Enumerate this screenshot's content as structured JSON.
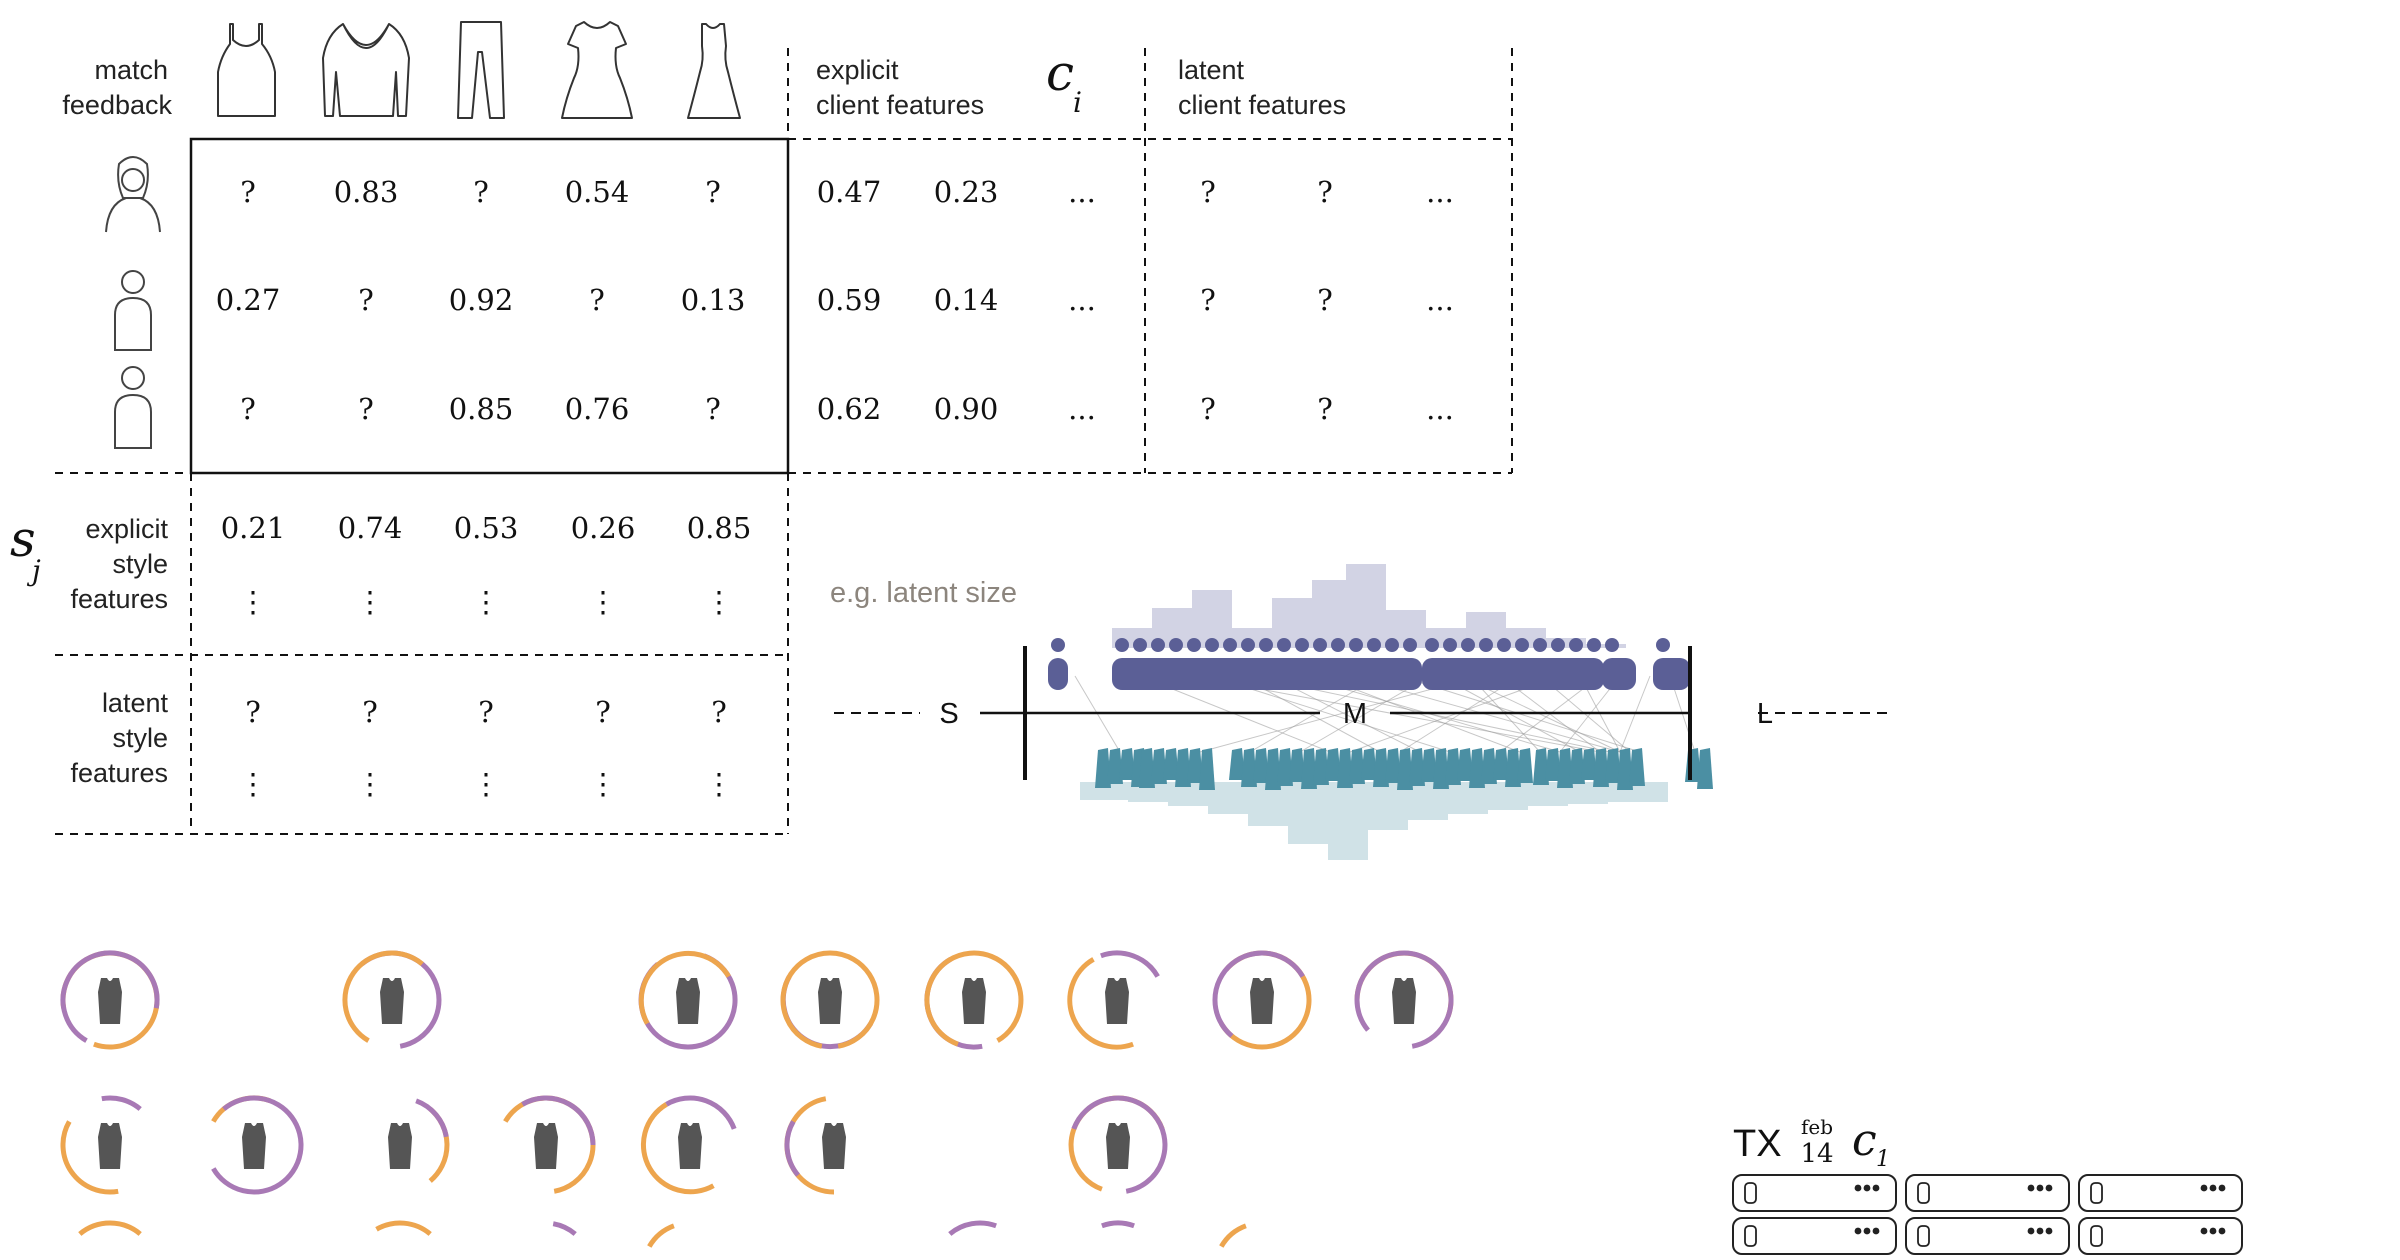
{
  "matrix": {
    "corner_label": [
      "match",
      "feedback"
    ],
    "rows": [
      [
        "?",
        "0.83",
        "?",
        "0.54",
        "?"
      ],
      [
        "0.27",
        "?",
        "0.92",
        "?",
        "0.13"
      ],
      [
        "?",
        "?",
        "0.85",
        "0.76",
        "?"
      ]
    ],
    "style_icons": [
      "tank-top-icon",
      "sweater-icon",
      "pants-icon",
      "dress-icon",
      "maxi-dress-icon"
    ],
    "client_icons": [
      "client-woman-icon",
      "client-person-icon",
      "client-person-icon"
    ]
  },
  "explicit_client": {
    "label": [
      "explicit",
      "client features"
    ],
    "symbol": "c",
    "subscript": "i",
    "rows": [
      [
        "0.47",
        "0.23",
        "..."
      ],
      [
        "0.59",
        "0.14",
        "..."
      ],
      [
        "0.62",
        "0.90",
        "..."
      ]
    ]
  },
  "latent_client": {
    "label": [
      "latent",
      "client features"
    ],
    "rows": [
      [
        "?",
        "?",
        "..."
      ],
      [
        "?",
        "?",
        "..."
      ],
      [
        "?",
        "?",
        "..."
      ]
    ]
  },
  "explicit_style": {
    "symbol": "s",
    "subscript": "j",
    "label": [
      "explicit",
      "style",
      "features"
    ],
    "values": [
      "0.21",
      "0.74",
      "0.53",
      "0.26",
      "0.85"
    ],
    "ellipsis": "⋮"
  },
  "latent_style": {
    "label": [
      "latent",
      "style",
      "features"
    ],
    "values": [
      "?",
      "?",
      "?",
      "?",
      "?"
    ],
    "ellipsis": "⋮"
  },
  "latent_size": {
    "caption": "e.g. latent size",
    "left": "S",
    "middle": "M",
    "right": "L",
    "client_color": "#5b5f96",
    "style_color": "#4b8fa3",
    "client_hist_color": "#d2d3e4",
    "style_hist_color": "#d0e2e7",
    "link_color": "#9a9a9a"
  },
  "shipments": {
    "colors": {
      "orange": "#eda54e",
      "purple": "#a879b5",
      "icon": "#555555"
    }
  },
  "transaction": {
    "state": "TX",
    "month": "feb",
    "day": "14",
    "symbol": "c",
    "subscript": "1"
  }
}
